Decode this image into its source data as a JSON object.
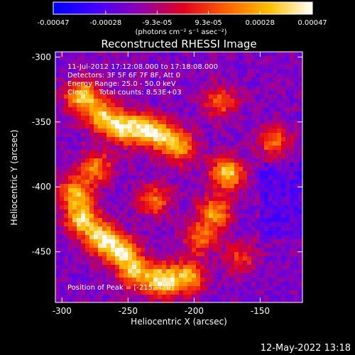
{
  "colorbar": {
    "tick_labels": [
      "-0.00047",
      "-0.00028",
      "-9.3e-05",
      "9.3e-05",
      "0.00028",
      "0.00047"
    ],
    "tick_values": [
      -0.00047,
      -0.00028,
      -9.3e-05,
      9.3e-05,
      0.00028,
      0.00047
    ],
    "range": [
      -0.00047,
      0.00047
    ],
    "unit_label": "(photons cm⁻² s⁻¹ asec⁻²)",
    "colormap": [
      "#0000ff",
      "#4400ff",
      "#9000b0",
      "#e00020",
      "#ff6000",
      "#ffc000",
      "#ffffff"
    ]
  },
  "chart_data": {
    "type": "heatmap",
    "title": "Reconstructed RHESSI Image",
    "xlabel": "Heliocentric X (arcsec)",
    "ylabel": "Heliocentric Y (arcsec)",
    "xlim": [
      -305,
      -118
    ],
    "ylim": [
      -489,
      -296
    ],
    "x_ticks": [
      -300,
      -250,
      -200,
      -150
    ],
    "x_tick_labels": [
      "-300",
      "-250",
      "-200",
      "-150"
    ],
    "y_ticks": [
      -300,
      -350,
      -400,
      -450
    ],
    "y_tick_labels": [
      "-300",
      "-350",
      "-400",
      "-450"
    ],
    "info_lines": [
      "11-Jul-2012 17:12:08.000 to 17:18:08.000",
      "Detectors: 3F 5F 6F 7F 8F, Att 0",
      "Energy Range: 25.0 - 50.0 keV",
      "Clean     Total counts: 8.53E+03"
    ],
    "peak_label": "Position of Peak = [-215,-470]",
    "peak_position": [
      -215,
      -470
    ],
    "bright_regions": [
      {
        "x": -285,
        "y": -330,
        "level": 0.9
      },
      {
        "x": -270,
        "y": -345,
        "level": 0.85
      },
      {
        "x": -255,
        "y": -355,
        "level": 0.8
      },
      {
        "x": -240,
        "y": -355,
        "level": 0.75
      },
      {
        "x": -225,
        "y": -360,
        "level": 0.8
      },
      {
        "x": -210,
        "y": -370,
        "level": 0.7
      },
      {
        "x": -275,
        "y": -385,
        "level": 0.7
      },
      {
        "x": -290,
        "y": -405,
        "level": 0.8
      },
      {
        "x": -285,
        "y": -425,
        "level": 0.9
      },
      {
        "x": -270,
        "y": -440,
        "level": 0.95
      },
      {
        "x": -255,
        "y": -450,
        "level": 0.85
      },
      {
        "x": -245,
        "y": -465,
        "level": 0.8
      },
      {
        "x": -225,
        "y": -472,
        "level": 1.0
      },
      {
        "x": -205,
        "y": -470,
        "level": 0.85
      },
      {
        "x": -230,
        "y": -410,
        "level": 0.6
      },
      {
        "x": -175,
        "y": -390,
        "level": 0.95
      },
      {
        "x": -185,
        "y": -420,
        "level": 0.75
      },
      {
        "x": -195,
        "y": -440,
        "level": 0.6
      },
      {
        "x": -180,
        "y": -335,
        "level": 0.55
      },
      {
        "x": -140,
        "y": -365,
        "level": 0.6
      },
      {
        "x": -165,
        "y": -455,
        "level": 0.45
      }
    ]
  },
  "footer": {
    "timestamp": "12-May-2022 13:18"
  }
}
